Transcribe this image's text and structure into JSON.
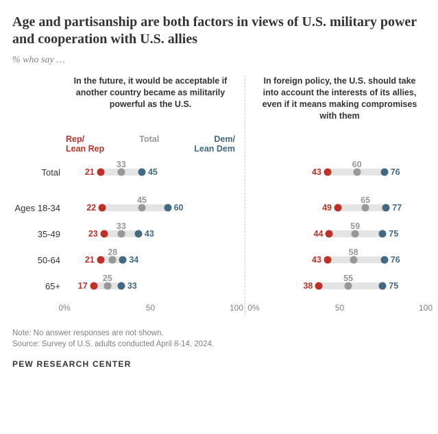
{
  "title": "Age and partisanship are both factors in views of U.S. military power and cooperation with U.S. allies",
  "subtitle": "% who say …",
  "colors": {
    "rep": "#bf3127",
    "total": "#989898",
    "dem": "#436983",
    "track": "#e4e4e4",
    "text": "#333333",
    "muted": "#808080",
    "divider": "#cccccc",
    "bg": "#ffffff"
  },
  "legend": {
    "rep": "Rep/\nLean Rep",
    "total": "Total",
    "dem": "Dem/\nLean Dem"
  },
  "row_labels": [
    "Total",
    "Ages 18-34",
    "35-49",
    "50-64",
    "65+"
  ],
  "panels": [
    {
      "header": "In the future, it would be acceptable if another country became as militarily powerful as the U.S.",
      "show_legend": true,
      "xlim": [
        0,
        100
      ],
      "xticks": [
        0,
        50,
        100
      ],
      "xtick_labels": [
        "0%",
        "50",
        "100"
      ],
      "rows": [
        {
          "rep": 21,
          "total": 33,
          "dem": 45
        },
        {
          "rep": 22,
          "total": 45,
          "dem": 60
        },
        {
          "rep": 23,
          "total": 33,
          "dem": 43
        },
        {
          "rep": 21,
          "total": 28,
          "dem": 34
        },
        {
          "rep": 17,
          "total": 25,
          "dem": 33
        }
      ]
    },
    {
      "header": "In foreign policy, the U.S. should take into account the interests of its allies, even if it means making compromises with them",
      "show_legend": false,
      "xlim": [
        0,
        100
      ],
      "xticks": [
        0,
        50,
        100
      ],
      "xtick_labels": [
        "0%",
        "50",
        "100"
      ],
      "rows": [
        {
          "rep": 43,
          "total": 60,
          "dem": 76
        },
        {
          "rep": 49,
          "total": 65,
          "dem": 77
        },
        {
          "rep": 44,
          "total": 59,
          "dem": 75
        },
        {
          "rep": 43,
          "total": 58,
          "dem": 76
        },
        {
          "rep": 38,
          "total": 55,
          "dem": 75
        }
      ]
    }
  ],
  "note": "Note: No answer responses are not shown.",
  "source": "Source: Survey of U.S. adults conducted April 8-14, 2024.",
  "brand": "PEW RESEARCH CENTER"
}
